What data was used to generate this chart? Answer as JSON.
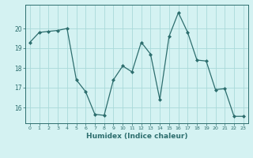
{
  "x": [
    0,
    1,
    2,
    3,
    4,
    5,
    6,
    7,
    8,
    9,
    10,
    11,
    12,
    13,
    14,
    15,
    16,
    17,
    18,
    19,
    20,
    21,
    22,
    23
  ],
  "y": [
    19.3,
    19.8,
    19.85,
    19.9,
    20.0,
    17.4,
    16.8,
    15.65,
    15.6,
    17.4,
    18.1,
    17.8,
    19.3,
    18.7,
    16.4,
    19.6,
    20.8,
    19.8,
    18.4,
    18.35,
    16.9,
    16.95,
    15.55,
    15.55
  ],
  "line_color": "#2d6e6e",
  "marker": "D",
  "marker_size": 2.0,
  "bg_color": "#d4f2f2",
  "grid_color": "#aadada",
  "tick_color": "#2d6e6e",
  "xlabel": "Humidex (Indice chaleur)",
  "xlabel_fontsize": 6.5,
  "ylim": [
    15.2,
    21.2
  ],
  "yticks": [
    16,
    17,
    18,
    19,
    20
  ],
  "xlim": [
    -0.5,
    23.5
  ]
}
